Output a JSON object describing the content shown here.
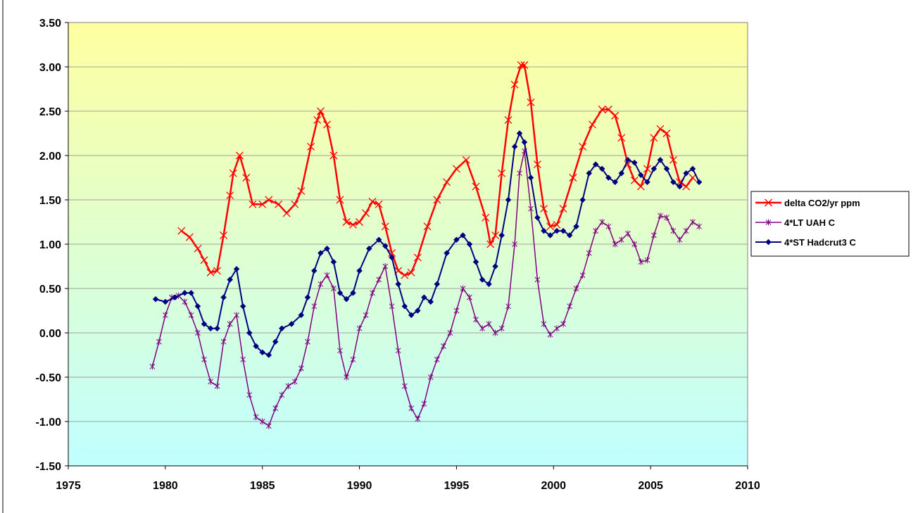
{
  "chart_data": {
    "type": "line",
    "title": "",
    "xlabel": "",
    "ylabel": "",
    "xlim": [
      1975,
      2010
    ],
    "ylim": [
      -1.5,
      3.5
    ],
    "x_ticks": [
      "1975",
      "1980",
      "1985",
      "1990",
      "1995",
      "2000",
      "2005",
      "2010"
    ],
    "y_ticks": [
      "3.50",
      "3.00",
      "2.50",
      "2.00",
      "1.50",
      "1.00",
      "0.50",
      "0.00",
      "-0.50",
      "-1.00",
      "-1.50"
    ],
    "grid": "horizontal",
    "background": {
      "top": "#ffffa0",
      "bottom": "#c0ffff"
    },
    "legend": {
      "placement": "right",
      "entries": [
        "delta CO2/yr ppm",
        "4*LT UAH C",
        "4*ST Hadcrut3 C"
      ]
    },
    "series": [
      {
        "name": "delta CO2/yr ppm",
        "color": "#ff0000",
        "marker": "x",
        "x": [
          1980.83,
          1981.25,
          1981.67,
          1982.0,
          1982.33,
          1982.67,
          1983.0,
          1983.33,
          1983.5,
          1983.83,
          1984.17,
          1984.5,
          1985.0,
          1985.33,
          1985.83,
          1986.25,
          1986.67,
          1987.0,
          1987.5,
          1987.83,
          1988.0,
          1988.33,
          1988.67,
          1989.0,
          1989.33,
          1989.67,
          1990.0,
          1990.33,
          1990.67,
          1991.0,
          1991.33,
          1991.67,
          1992.0,
          1992.33,
          1992.67,
          1993.0,
          1993.5,
          1994.0,
          1994.5,
          1995.0,
          1995.5,
          1996.0,
          1996.5,
          1996.75,
          1997.0,
          1997.33,
          1997.67,
          1998.0,
          1998.33,
          1998.5,
          1998.83,
          1999.17,
          1999.5,
          1999.83,
          2000.17,
          2000.5,
          2001.0,
          2001.5,
          2002.0,
          2002.5,
          2002.83,
          2003.17,
          2003.5,
          2003.83,
          2004.17,
          2004.5,
          2004.83,
          2005.17,
          2005.5,
          2005.83,
          2006.17,
          2006.5,
          2006.83,
          2007.17
        ],
        "y": [
          1.15,
          1.08,
          0.95,
          0.82,
          0.68,
          0.7,
          1.1,
          1.55,
          1.8,
          2.0,
          1.75,
          1.45,
          1.45,
          1.5,
          1.45,
          1.35,
          1.45,
          1.6,
          2.1,
          2.4,
          2.5,
          2.35,
          2.0,
          1.5,
          1.25,
          1.22,
          1.25,
          1.35,
          1.48,
          1.45,
          1.2,
          0.9,
          0.7,
          0.65,
          0.68,
          0.85,
          1.2,
          1.5,
          1.7,
          1.85,
          1.95,
          1.65,
          1.3,
          1.0,
          1.1,
          1.8,
          2.4,
          2.8,
          3.02,
          3.02,
          2.6,
          1.9,
          1.4,
          1.2,
          1.22,
          1.4,
          1.75,
          2.1,
          2.35,
          2.52,
          2.52,
          2.45,
          2.2,
          1.9,
          1.72,
          1.65,
          1.85,
          2.2,
          2.3,
          2.25,
          1.95,
          1.7,
          1.65,
          1.75
        ]
      },
      {
        "name": "4*LT UAH C",
        "color": "#800080",
        "marker": "*",
        "x": [
          1979.33,
          1979.67,
          1980.0,
          1980.33,
          1980.67,
          1981.0,
          1981.33,
          1981.67,
          1982.0,
          1982.33,
          1982.67,
          1983.0,
          1983.33,
          1983.67,
          1984.0,
          1984.33,
          1984.67,
          1985.0,
          1985.33,
          1985.67,
          1986.0,
          1986.33,
          1986.67,
          1987.0,
          1987.33,
          1987.67,
          1988.0,
          1988.33,
          1988.67,
          1989.0,
          1989.33,
          1989.67,
          1990.0,
          1990.33,
          1990.67,
          1991.0,
          1991.33,
          1991.67,
          1992.0,
          1992.33,
          1992.67,
          1993.0,
          1993.33,
          1993.67,
          1994.0,
          1994.33,
          1994.67,
          1995.0,
          1995.33,
          1995.67,
          1996.0,
          1996.33,
          1996.67,
          1997.0,
          1997.33,
          1997.67,
          1998.0,
          1998.25,
          1998.5,
          1998.83,
          1999.17,
          1999.5,
          1999.83,
          2000.17,
          2000.5,
          2000.83,
          2001.17,
          2001.5,
          2001.83,
          2002.17,
          2002.5,
          2002.83,
          2003.17,
          2003.5,
          2003.83,
          2004.17,
          2004.5,
          2004.83,
          2005.17,
          2005.5,
          2005.83,
          2006.17,
          2006.5,
          2006.83,
          2007.17,
          2007.5
        ],
        "y": [
          -0.38,
          -0.1,
          0.2,
          0.4,
          0.42,
          0.35,
          0.2,
          0.0,
          -0.3,
          -0.55,
          -0.6,
          -0.1,
          0.1,
          0.2,
          -0.3,
          -0.7,
          -0.95,
          -1.0,
          -1.05,
          -0.85,
          -0.7,
          -0.6,
          -0.55,
          -0.4,
          -0.1,
          0.3,
          0.55,
          0.65,
          0.5,
          -0.2,
          -0.5,
          -0.3,
          0.05,
          0.2,
          0.45,
          0.6,
          0.75,
          0.3,
          -0.2,
          -0.6,
          -0.85,
          -0.97,
          -0.8,
          -0.5,
          -0.3,
          -0.15,
          0.0,
          0.25,
          0.5,
          0.4,
          0.15,
          0.05,
          0.1,
          0.0,
          0.05,
          0.3,
          1.0,
          1.8,
          2.05,
          1.4,
          0.6,
          0.1,
          -0.02,
          0.05,
          0.1,
          0.3,
          0.5,
          0.65,
          0.9,
          1.15,
          1.25,
          1.2,
          1.0,
          1.05,
          1.12,
          1.0,
          0.8,
          0.82,
          1.1,
          1.32,
          1.3,
          1.15,
          1.05,
          1.15,
          1.25,
          1.2
        ]
      },
      {
        "name": "4*ST Hadcrut3 C",
        "color": "#000080",
        "marker": "diamond",
        "x": [
          1979.5,
          1980.0,
          1980.5,
          1981.0,
          1981.33,
          1981.67,
          1982.0,
          1982.33,
          1982.67,
          1983.0,
          1983.33,
          1983.67,
          1984.0,
          1984.33,
          1984.67,
          1985.0,
          1985.33,
          1985.67,
          1986.0,
          1986.5,
          1987.0,
          1987.33,
          1987.67,
          1988.0,
          1988.33,
          1988.67,
          1989.0,
          1989.33,
          1989.67,
          1990.0,
          1990.5,
          1991.0,
          1991.33,
          1991.67,
          1992.0,
          1992.33,
          1992.67,
          1993.0,
          1993.33,
          1993.67,
          1994.0,
          1994.5,
          1995.0,
          1995.33,
          1995.67,
          1996.0,
          1996.33,
          1996.67,
          1997.0,
          1997.33,
          1997.67,
          1998.0,
          1998.25,
          1998.5,
          1998.83,
          1999.17,
          1999.5,
          1999.83,
          2000.17,
          2000.5,
          2000.83,
          2001.17,
          2001.5,
          2001.83,
          2002.17,
          2002.5,
          2002.83,
          2003.17,
          2003.5,
          2003.83,
          2004.17,
          2004.5,
          2004.83,
          2005.17,
          2005.5,
          2005.83,
          2006.17,
          2006.5,
          2006.83,
          2007.17,
          2007.5
        ],
        "y": [
          0.38,
          0.35,
          0.4,
          0.45,
          0.45,
          0.3,
          0.1,
          0.05,
          0.05,
          0.4,
          0.6,
          0.72,
          0.3,
          0.0,
          -0.15,
          -0.22,
          -0.25,
          -0.1,
          0.05,
          0.1,
          0.2,
          0.4,
          0.7,
          0.9,
          0.95,
          0.8,
          0.45,
          0.38,
          0.45,
          0.7,
          0.95,
          1.05,
          0.98,
          0.85,
          0.55,
          0.3,
          0.2,
          0.25,
          0.4,
          0.35,
          0.55,
          0.9,
          1.05,
          1.1,
          1.0,
          0.8,
          0.6,
          0.55,
          0.75,
          1.1,
          1.5,
          2.1,
          2.25,
          2.15,
          1.75,
          1.3,
          1.15,
          1.1,
          1.15,
          1.15,
          1.1,
          1.2,
          1.5,
          1.8,
          1.9,
          1.85,
          1.75,
          1.7,
          1.8,
          1.95,
          1.92,
          1.78,
          1.7,
          1.85,
          1.95,
          1.85,
          1.7,
          1.65,
          1.8,
          1.85,
          1.7
        ]
      }
    ]
  }
}
